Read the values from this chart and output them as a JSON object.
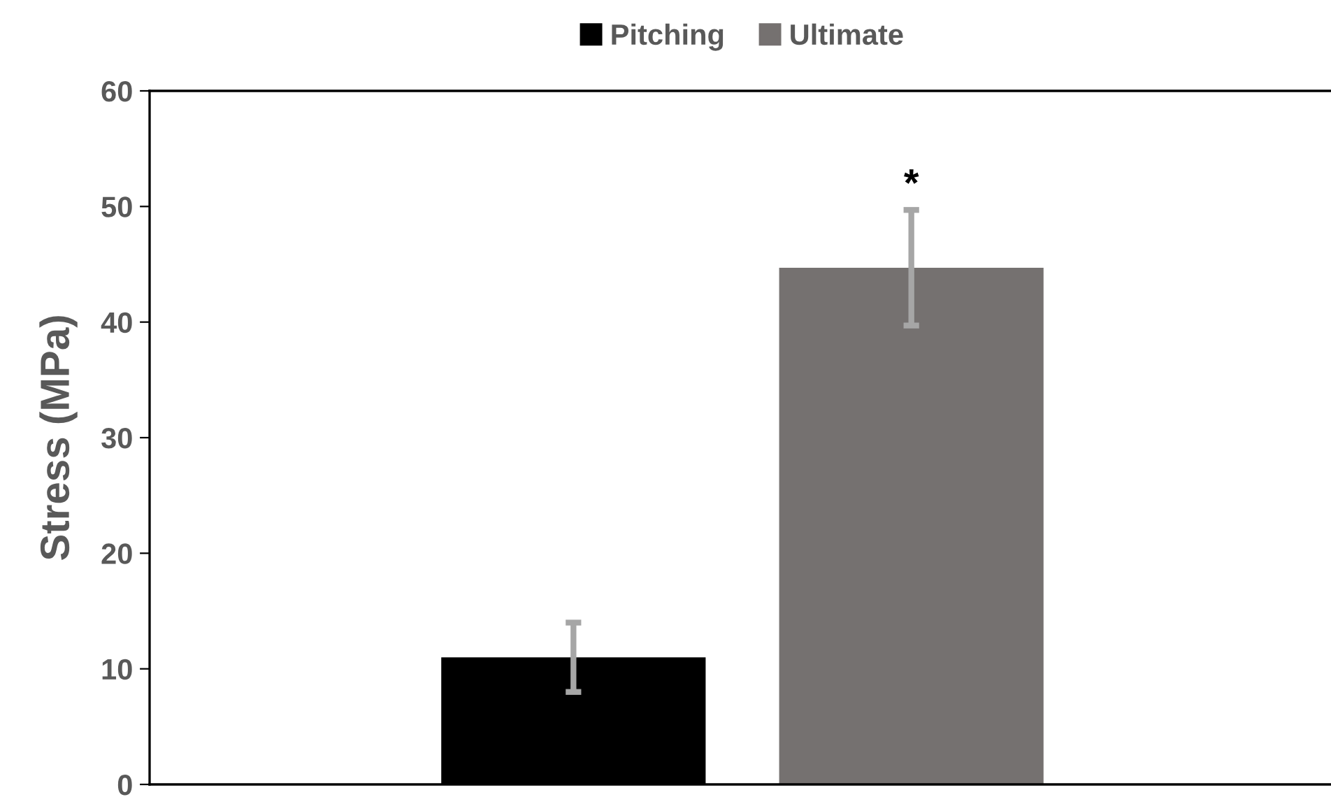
{
  "chart_data": {
    "type": "bar",
    "ylabel": "Stress (MPa)",
    "categories": [
      null
    ],
    "series": [
      {
        "name": "Pitching",
        "color": "#000000",
        "values": [
          11.0
        ],
        "errors": [
          3.0
        ]
      },
      {
        "name": "Ultimate",
        "color": "#757170",
        "values": [
          44.7
        ],
        "errors": [
          5.0
        ]
      }
    ],
    "ylim": [
      0,
      60
    ],
    "yticks": [
      0,
      10,
      20,
      30,
      40,
      50,
      60
    ],
    "annotations": [
      "*"
    ],
    "grid": false,
    "legend": "top"
  }
}
